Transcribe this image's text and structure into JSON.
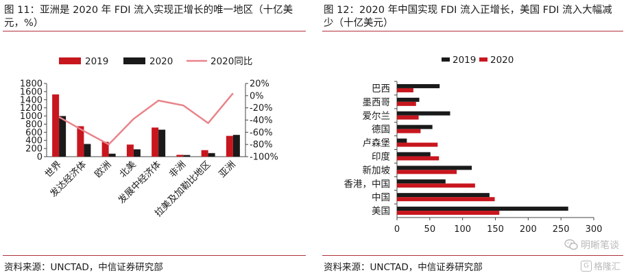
{
  "left": {
    "title": "图 11：亚洲是 2020 年 FDI 流入实现正增长的唯一地区（十亿美元，%）",
    "source": "资料来源：UNCTAD，中信证券研究部"
  },
  "right": {
    "title": "图 12：2020 年中国实现 FDI 流入正增长，美国 FDI 流入大幅减少（十亿美元）",
    "source": "资料来源：UNCTAD，中信证券研究部"
  },
  "watermark": {
    "text": "明晰笔谈",
    "logo_text": "格隆汇",
    "logo_glyph": "G"
  },
  "colors": {
    "red": "#c8161e",
    "black": "#1a1a1a",
    "pink": "#e8838a",
    "rule": "#b0303a"
  },
  "chart_data": [
    {
      "type": "bar",
      "categories": [
        "世界",
        "发达经济体",
        "欧洲",
        "北美",
        "发展中经济体",
        "非洲",
        "拉美及加勒比地区",
        "亚洲"
      ],
      "series": [
        {
          "name": "2019",
          "type": "bar",
          "axis": "left",
          "color": "#c8161e",
          "values": [
            1530,
            749,
            364,
            297,
            716,
            45,
            160,
            511
          ]
        },
        {
          "name": "2020",
          "type": "bar",
          "axis": "left",
          "color": "#1a1a1a",
          "values": [
            999,
            312,
            73,
            180,
            663,
            40,
            88,
            535
          ]
        },
        {
          "name": "2020同比",
          "type": "line",
          "axis": "right",
          "color": "#e8838a",
          "values": [
            -35,
            -58,
            -80,
            -38,
            -8,
            -16,
            -45,
            4
          ]
        }
      ],
      "y_left": {
        "min": 0,
        "max": 1800,
        "ticks": [
          "0",
          "200",
          "400",
          "600",
          "800",
          "1000",
          "1200",
          "1400",
          "1600",
          "1800"
        ]
      },
      "y_right": {
        "min": -100,
        "max": 20,
        "ticks": [
          "20%",
          "0%",
          "-20%",
          "-40%",
          "-60%",
          "-80%",
          "-100%"
        ]
      },
      "legend": "top"
    },
    {
      "type": "bar",
      "orientation": "horizontal",
      "categories": [
        "巴西",
        "墨西哥",
        "爱尔兰",
        "德国",
        "卢森堡",
        "印度",
        "新加坡",
        "香港，中国",
        "中国",
        "美国"
      ],
      "series": [
        {
          "name": "2019",
          "color": "#1a1a1a",
          "values": [
            65,
            34,
            81,
            54,
            15,
            51,
            114,
            74,
            141,
            261
          ]
        },
        {
          "name": "2020",
          "color": "#c8161e",
          "values": [
            25,
            29,
            33,
            36,
            62,
            64,
            91,
            119,
            149,
            156
          ]
        }
      ],
      "x_axis": {
        "min": 0,
        "max": 300,
        "ticks": [
          "0",
          "50",
          "100",
          "150",
          "200",
          "250",
          "300"
        ]
      },
      "legend": "top"
    }
  ]
}
